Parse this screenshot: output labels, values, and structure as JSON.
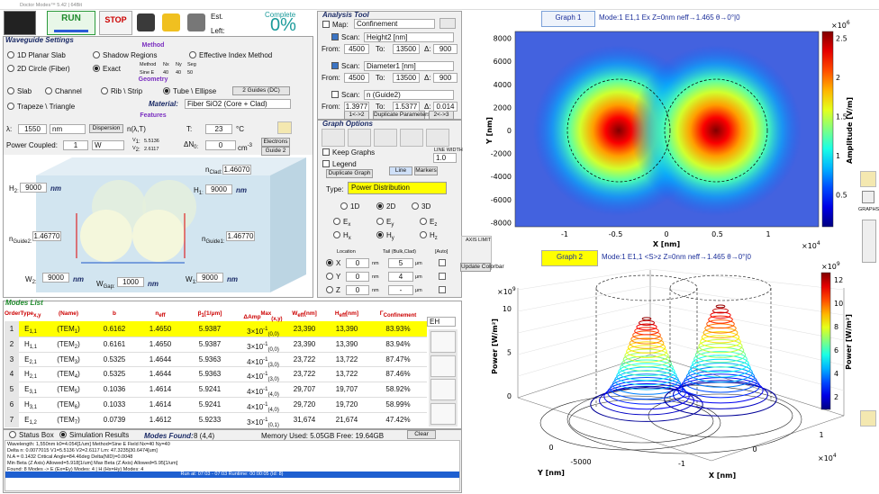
{
  "window_title": "Doctor Modes™ 5.42 | 64Bit",
  "toolbar": {
    "run": "RUN",
    "stop": "STOP",
    "est": "Est.",
    "left": "Left:",
    "complete": "Complete",
    "progress": "0%"
  },
  "waveguide": {
    "title": "Waveguide Settings",
    "method_header": "Method",
    "methods": [
      "1D Planar Slab",
      "Shadow Regions",
      "Effective Index Method",
      "2D Circle (Fiber)",
      "Exact"
    ],
    "grid_labels": [
      "Method",
      "Nx",
      "Ny",
      "Seg"
    ],
    "grid_values": [
      "Sine E",
      "40",
      "40",
      "50"
    ],
    "geometry_header": "Geometry",
    "geometries": [
      "Slab",
      "Channel",
      "Rib \\ Strip",
      "Tube \\ Ellipse",
      "Trapeze \\ Triangle"
    ],
    "guides_button": "2 Guides (DC)",
    "material_label": "Material:",
    "material": "Fiber SiO2 (Core + Clad)",
    "features_header": "Features",
    "lambda_label": "λ:",
    "lambda": "1550",
    "nm": "nm",
    "dispersion": "Dispersion",
    "n_lambda": "n(λ,T)",
    "t_label": "T:",
    "t": "23",
    "t_unit": "°C",
    "power_label": "Power Coupled:",
    "power": "1",
    "power_unit": "W",
    "v_label": "V",
    "v1_sub": "1:",
    "v1": "5.5136",
    "v2_sub": "2:",
    "v2": "2.6117",
    "dn_label": "ΔN",
    "dn_sub": "0:",
    "dn": "0",
    "dn_unit": "cm",
    "dn_unit_sup": "-3",
    "electrons": "Electrons",
    "guide2": "Guide 2",
    "n_label": "n",
    "n_clad_sub": "Clad:",
    "n_clad": "1.46070",
    "h_label": "H",
    "h2_sub": "2:",
    "h2": "9000",
    "h1_sub": "1:",
    "h1": "9000",
    "n_guide2_sub": "Guide2:",
    "n_guide2": "1.46770",
    "n_guide1_sub": "Guide1:",
    "n_guide1": "1.46770",
    "w_label": "W",
    "w2_sub": "2:",
    "w2": "9000",
    "w_gap_sub": "Gap:",
    "w_gap": "1000",
    "w1_sub": "1:",
    "w1": "9000"
  },
  "analysis": {
    "title": "Analysis Tool",
    "map_label": "Map:",
    "map": "Confinement",
    "from_label": "From:",
    "to_label": "To:",
    "delta_label": "Δ:",
    "scans": [
      {
        "label": "Scan:",
        "param": "Height2 [nm]",
        "from": "4500",
        "to": "13500",
        "delta": "900"
      },
      {
        "label": "Scan:",
        "param": "Diameter1 [nm]",
        "from": "4500",
        "to": "13500",
        "delta": "900"
      },
      {
        "label": "Scan:",
        "param": "n (Guide2)",
        "from": "1.3977",
        "to": "1.5377",
        "delta": "0.014"
      }
    ],
    "buttons": [
      "1<->2",
      "Duplicate Parameters",
      "2<->3"
    ]
  },
  "graph_options": {
    "title": "Graph Options",
    "keep_graphs": "Keep Graphs",
    "legend": "Legend",
    "duplicate": "Duplicate Graph",
    "line": "Line",
    "markers": "Markers",
    "line_width_label": "LINE WIDTH",
    "line_width": "1.0",
    "type_label": "Type:",
    "type": "Power Distribution",
    "dims": [
      "1D",
      "2D",
      "3D"
    ],
    "fields": [
      {
        "text": "E",
        "sub": "x"
      },
      {
        "text": "E",
        "sub": "y"
      },
      {
        "text": "E",
        "sub": "z"
      },
      {
        "text": "H",
        "sub": "x"
      },
      {
        "text": "H",
        "sub": "y"
      },
      {
        "text": "H",
        "sub": "z"
      }
    ],
    "location": "Location",
    "tail": "Tail (Bulk,Clad)",
    "auto": "[Auto]",
    "rows": [
      {
        "axis": "X",
        "value": "0",
        "unit": "nm",
        "tail": "5",
        "tail_unit": "μm"
      },
      {
        "axis": "Y",
        "value": "0",
        "unit": "nm",
        "tail": "4",
        "tail_unit": "μm"
      },
      {
        "axis": "Z",
        "value": "0",
        "unit": "nm",
        "tail": "-",
        "tail_unit": "μm"
      }
    ],
    "axis_limit": "AXIS LIMIT",
    "update_colorbar": "Update Colorbar"
  },
  "modes": {
    "title": "Modes List",
    "filter": "EH",
    "headers": [
      {
        "text": "Order"
      },
      {
        "text": "Type",
        "sub": "x,y"
      },
      {
        "text": "(Name)"
      },
      {
        "text": "b"
      },
      {
        "text": "n",
        "sub": "eff"
      },
      {
        "text": "β",
        "sub": "1",
        "after": "[1/μm]"
      },
      {
        "text": "ΔAmp",
        "sup": "Max",
        "sub": "(x,y)"
      },
      {
        "text": "W",
        "sub": "eff",
        "after": "[nm]"
      },
      {
        "text": "H",
        "sub": "eff",
        "after": "[nm]"
      },
      {
        "text": "Γ",
        "sub": "Confinement"
      }
    ],
    "rows": [
      {
        "order": "1",
        "type": "E",
        "type_sub": "1,1",
        "name": "(TEM",
        "name_sub": "1",
        "name_end": ")",
        "b": "0.6162",
        "neff": "1.4650",
        "beta": "5.9387",
        "amp": "3×10",
        "amp_sup": "-1",
        "amp_sub": "(0,0)",
        "weff": "23,390",
        "heff": "13,390",
        "gamma": "83.93%"
      },
      {
        "order": "2",
        "type": "H",
        "type_sub": "1,1",
        "name": "(TEM",
        "name_sub": "2",
        "name_end": ")",
        "b": "0.6161",
        "neff": "1.4650",
        "beta": "5.9387",
        "amp": "3×10",
        "amp_sup": "-1",
        "amp_sub": "(0,0)",
        "weff": "23,390",
        "heff": "13,390",
        "gamma": "83.94%"
      },
      {
        "order": "3",
        "type": "E",
        "type_sub": "2,1",
        "name": "(TEM",
        "name_sub": "3",
        "name_end": ")",
        "b": "0.5325",
        "neff": "1.4644",
        "beta": "5.9363",
        "amp": "4×10",
        "amp_sup": "-1",
        "amp_sub": "(3,0)",
        "weff": "23,722",
        "heff": "13,722",
        "gamma": "87.47%"
      },
      {
        "order": "4",
        "type": "H",
        "type_sub": "2,1",
        "name": "(TEM",
        "name_sub": "4",
        "name_end": ")",
        "b": "0.5325",
        "neff": "1.4644",
        "beta": "5.9363",
        "amp": "4×10",
        "amp_sup": "-1",
        "amp_sub": "(3,0)",
        "weff": "23,722",
        "heff": "13,722",
        "gamma": "87.46%"
      },
      {
        "order": "5",
        "type": "E",
        "type_sub": "3,1",
        "name": "(TEM",
        "name_sub": "5",
        "name_end": ")",
        "b": "0.1036",
        "neff": "1.4614",
        "beta": "5.9241",
        "amp": "4×10",
        "amp_sup": "-1",
        "amp_sub": "(4,0)",
        "weff": "29,707",
        "heff": "19,707",
        "gamma": "58.92%"
      },
      {
        "order": "6",
        "type": "H",
        "type_sub": "3,1",
        "name": "(TEM",
        "name_sub": "6",
        "name_end": ")",
        "b": "0.1033",
        "neff": "1.4614",
        "beta": "5.9241",
        "amp": "4×10",
        "amp_sup": "-1",
        "amp_sub": "(4,0)",
        "weff": "29,720",
        "heff": "19,720",
        "gamma": "58.99%"
      },
      {
        "order": "7",
        "type": "E",
        "type_sub": "1,2",
        "name": "(TEM",
        "name_sub": "7",
        "name_end": ")",
        "b": "0.0739",
        "neff": "1.4612",
        "beta": "5.9233",
        "amp": "3×10",
        "amp_sup": "-1",
        "amp_sub": "(0,1)",
        "weff": "31,674",
        "heff": "21,674",
        "gamma": "47.42%"
      }
    ]
  },
  "status": {
    "status_box": "Status Box",
    "simulation_results": "Simulation Results",
    "modes_found_label": "Modes Found:",
    "modes_found": "8 (4,4)",
    "memory": "Memory Used: 5.05GB  Free: 19.64GB",
    "clear": "Clear",
    "lines": [
      "Wavelength: 1,550nm      k0=4.054[1/um]      Method=Sine E Field      Nx=40    Ny=40",
      "Delta n: 0.0077015      V1=5.5136      V2=2.6117      Lm: 47.3235|30.6474[um]",
      "N.A = 0.1432      Critical Angle=84.46deg      Delta(NID)=0.0048",
      "Min Beta (Z Axis) Allowed=5.918[1/um]      Max Beta (Z Axis) Allowed=5.95[1/um]",
      "Found: 8 Modes -> E (Ex=Ey) Modes: 4   |   H (Hx=Hy) Modes: 4"
    ],
    "run": "Run at: 07:03 - 07:03    Runtime: 00:00:05    (Id: 8)"
  },
  "graph1": {
    "title": "Graph 1",
    "info": "Mode:1  E1,1  Ex  Z=0nm  neff→1.465  θ→0°|0",
    "yticks": [
      "8000",
      "6000",
      "4000",
      "2000",
      "0",
      "-2000",
      "-4000",
      "-6000",
      "-8000"
    ],
    "xticks": [
      "-1",
      "-0.5",
      "0",
      "0.5",
      "1"
    ],
    "exp_base": "×10",
    "x_exp": "4",
    "x_label": "X [nm]",
    "y_label": "Y [nm]",
    "cbar_ticks": [
      "0.5",
      "1",
      "1.5",
      "2",
      "2.5"
    ],
    "cbar_exp": "6",
    "cbar_label": "Amplitude [V/m]"
  },
  "graph2": {
    "title": "Graph 2",
    "info": "Mode:1  E1,1  <S>z  Z=0nm  neff→1.465  θ→0°|0",
    "zticks": [
      "0",
      "5",
      "10"
    ],
    "exp_base": "×10",
    "z_exp": "9",
    "z_label": "Power [W/m²]",
    "yticks": [
      "-5000",
      "0"
    ],
    "y_label": "Y [nm]",
    "xticks": [
      "-1",
      "0",
      "1"
    ],
    "x_exp": "4",
    "x_label": "X [nm]",
    "cbar_ticks": [
      "2",
      "4",
      "6",
      "8",
      "10",
      "12"
    ],
    "cbar_label": "Power [W/m²]"
  },
  "side": {
    "graphs_math": "GRAPHS MATH"
  }
}
